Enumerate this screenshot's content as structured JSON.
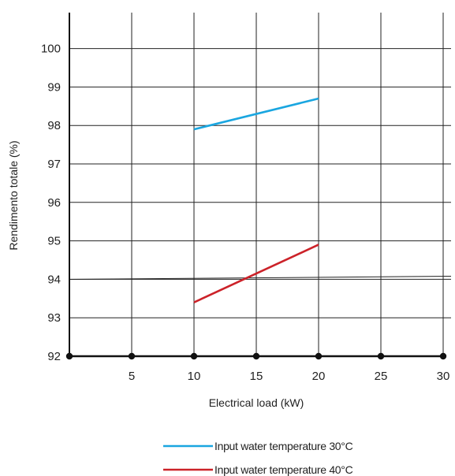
{
  "chart_data": {
    "type": "line",
    "xlabel": "Electrical load (kW)",
    "ylabel": "Rendimento totale (%)",
    "xlim": [
      0,
      30
    ],
    "ylim": [
      92,
      101
    ],
    "x_ticks": [
      5,
      10,
      15,
      20,
      25,
      30
    ],
    "y_ticks": [
      92,
      93,
      94,
      95,
      96,
      97,
      98,
      99,
      100
    ],
    "grid": true,
    "legend_position": "bottom",
    "series": [
      {
        "name": "Input water temperature 30°C",
        "color": "#1aa6e0",
        "x": [
          10,
          20
        ],
        "y": [
          97.9,
          98.7
        ]
      },
      {
        "name": "Input water temperature 40°C",
        "color": "#cc2229",
        "x": [
          10,
          20
        ],
        "y": [
          93.4,
          94.9
        ]
      }
    ]
  }
}
